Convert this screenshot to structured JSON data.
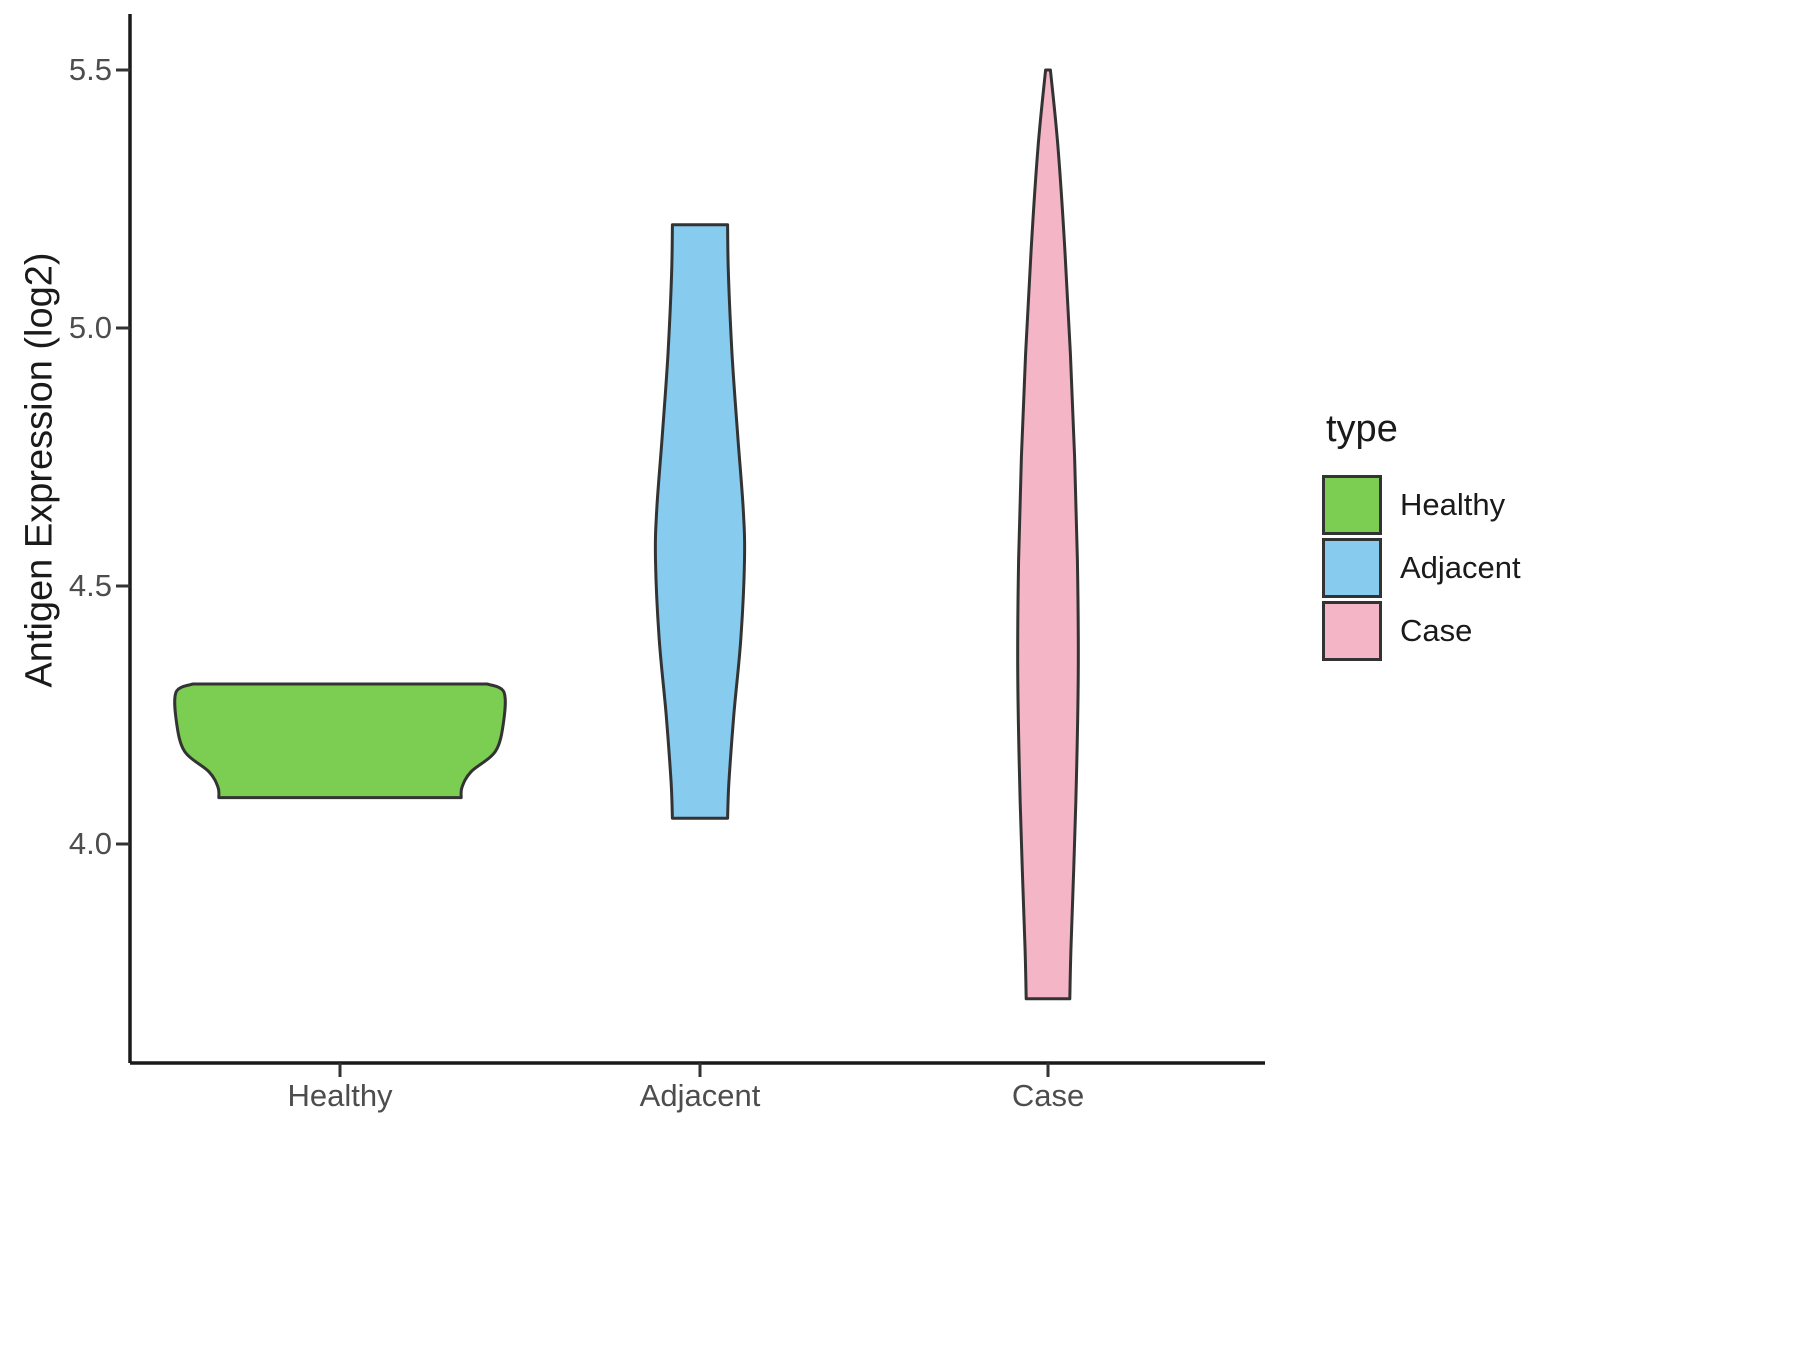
{
  "chart_data": {
    "type": "violin",
    "title": "",
    "xlabel": "",
    "ylabel": "Antigen Expression (log2)",
    "categories": [
      "Healthy",
      "Adjacent",
      "Case"
    ],
    "y_ticks": [
      {
        "value": 4.0,
        "label": "4.0"
      },
      {
        "value": 4.5,
        "label": "4.5"
      },
      {
        "value": 5.0,
        "label": "5.0"
      },
      {
        "value": 5.5,
        "label": "5.5"
      }
    ],
    "y_range": [
      3.55,
      5.6
    ],
    "grid": "off",
    "legend": {
      "title": "type",
      "position": "right",
      "entries": [
        {
          "label": "Healthy",
          "color": "#7CCE52"
        },
        {
          "label": "Adjacent",
          "color": "#87CBEE"
        },
        {
          "label": "Case",
          "color": "#F4B6C6"
        }
      ]
    },
    "series": [
      {
        "name": "Healthy",
        "fill": "#7CCE52",
        "stroke": "#333333",
        "y_min": 4.09,
        "y_max": 4.31,
        "max_halfwidth": 0.46,
        "profile": [
          {
            "v": 4.31,
            "w": 0.9
          },
          {
            "v": 4.295,
            "w": 1.0
          },
          {
            "v": 4.24,
            "w": 1.0
          },
          {
            "v": 4.18,
            "w": 0.95
          },
          {
            "v": 4.14,
            "w": 0.8
          },
          {
            "v": 4.11,
            "w": 0.745
          },
          {
            "v": 4.09,
            "w": 0.74
          }
        ]
      },
      {
        "name": "Adjacent",
        "fill": "#87CBEE",
        "stroke": "#333333",
        "y_min": 4.05,
        "y_max": 5.2,
        "max_halfwidth": 0.125,
        "profile": [
          {
            "v": 5.2,
            "w": 0.62
          },
          {
            "v": 5.1,
            "w": 0.64
          },
          {
            "v": 4.95,
            "w": 0.72
          },
          {
            "v": 4.8,
            "w": 0.84
          },
          {
            "v": 4.65,
            "w": 0.97
          },
          {
            "v": 4.55,
            "w": 1.0
          },
          {
            "v": 4.4,
            "w": 0.92
          },
          {
            "v": 4.25,
            "w": 0.76
          },
          {
            "v": 4.12,
            "w": 0.65
          },
          {
            "v": 4.05,
            "w": 0.62
          }
        ]
      },
      {
        "name": "Case",
        "fill": "#F4B6C6",
        "stroke": "#333333",
        "y_min": 3.7,
        "y_max": 5.5,
        "max_halfwidth": 0.085,
        "profile": [
          {
            "v": 5.5,
            "w": 0.08
          },
          {
            "v": 5.35,
            "w": 0.33
          },
          {
            "v": 5.15,
            "w": 0.56
          },
          {
            "v": 4.95,
            "w": 0.74
          },
          {
            "v": 4.75,
            "w": 0.88
          },
          {
            "v": 4.55,
            "w": 0.97
          },
          {
            "v": 4.35,
            "w": 1.0
          },
          {
            "v": 4.15,
            "w": 0.95
          },
          {
            "v": 3.95,
            "w": 0.85
          },
          {
            "v": 3.8,
            "w": 0.76
          },
          {
            "v": 3.7,
            "w": 0.72
          }
        ]
      }
    ]
  }
}
